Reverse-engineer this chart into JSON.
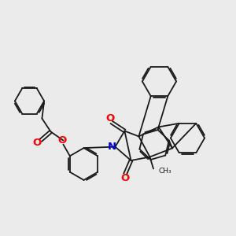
{
  "background_color": "#ebebeb",
  "bond_color": "#1a1a1a",
  "bond_width": 1.3,
  "atom_colors": {
    "O": "#ff0000",
    "N": "#0000cc",
    "C": "#1a1a1a"
  },
  "figsize": [
    3.0,
    3.0
  ],
  "dpi": 100,
  "xlim": [
    0,
    10
  ],
  "ylim": [
    0,
    10
  ]
}
